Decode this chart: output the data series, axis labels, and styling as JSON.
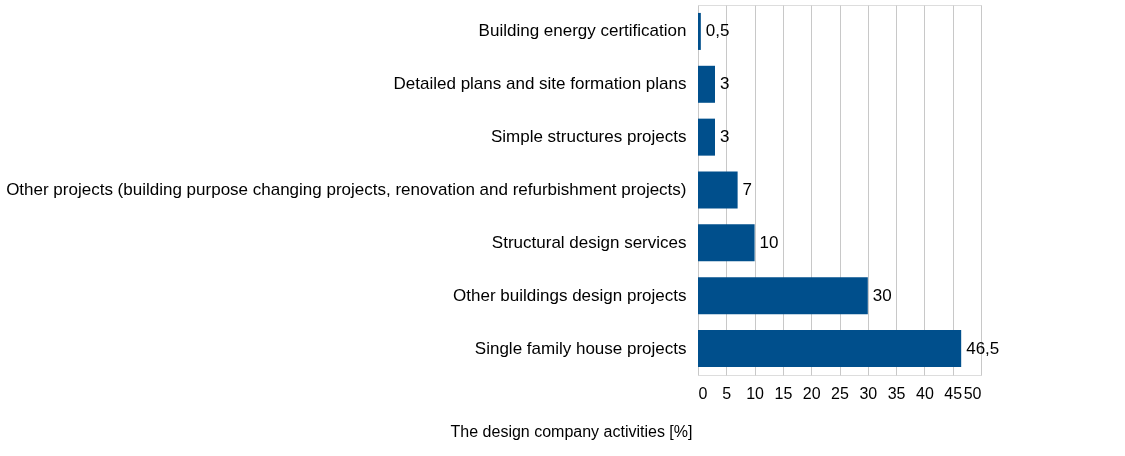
{
  "chart_data": {
    "type": "bar",
    "orientation": "horizontal",
    "xlabel": "The design company activities [%]",
    "categories": [
      "Building energy certification",
      "Detailed plans and site formation plans",
      "Simple structures projects",
      "Other projects (building purpose changing projects, renovation and refurbishment projects)",
      "Structural design services",
      "Other buildings design projects",
      "Single family house projects"
    ],
    "values": [
      0.5,
      3,
      3,
      7,
      10,
      30,
      46.5
    ],
    "value_labels": [
      "0,5",
      "3",
      "3",
      "7",
      "10",
      "30",
      "46,5"
    ],
    "color": "#004f8c",
    "xlim": [
      0,
      50
    ],
    "xticks": [
      0,
      5,
      10,
      15,
      20,
      25,
      30,
      35,
      40,
      45,
      50
    ],
    "grid": "x"
  }
}
